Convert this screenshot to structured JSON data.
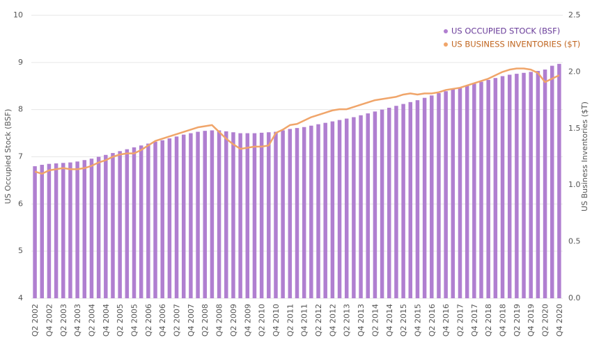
{
  "chart_data": {
    "type": "bar_line",
    "y_label": "US Occupied Stock (BSF)",
    "y2_label": "US Business Inventories ($T)",
    "legend": "upper right",
    "grid": true,
    "categories": [
      "Q2 2002",
      null,
      "Q4 2002",
      null,
      "Q2 2003",
      null,
      "Q4 2003",
      null,
      "Q2 2004",
      null,
      "Q4 2004",
      null,
      "Q2 2005",
      null,
      "Q4 2005",
      null,
      "Q2 2006",
      null,
      "Q4 2006",
      null,
      "Q2 2007",
      null,
      "Q4 2007",
      null,
      "Q2 2008",
      null,
      "Q4 2008",
      null,
      "Q2 2009",
      null,
      "Q4 2009",
      null,
      "Q2 2010",
      null,
      "Q4 2010",
      null,
      "Q2 2011",
      null,
      "Q4 2011",
      null,
      "Q2 2012",
      null,
      "Q4 2012",
      null,
      "Q2 2013",
      null,
      "Q4 2013",
      null,
      "Q2 2014",
      null,
      "Q4 2014",
      null,
      "Q2 2015",
      null,
      "Q4 2015",
      null,
      "Q2 2016",
      null,
      "Q4 2016",
      null,
      "Q2 2017",
      null,
      "Q4 2017",
      null,
      "Q2 2018",
      null,
      "Q4 2018",
      null,
      "Q2 2019",
      null,
      "Q4 2019",
      null,
      "Q2 2020",
      null,
      "Q4 2020"
    ],
    "series": [
      {
        "name": "US OCCUPIED STOCK (BSF)",
        "type": "bar",
        "color": "#b07fd0",
        "values": [
          6.8,
          6.83,
          6.85,
          6.86,
          6.87,
          6.88,
          6.9,
          6.93,
          6.96,
          7.0,
          7.04,
          7.08,
          7.12,
          7.16,
          7.2,
          7.24,
          7.28,
          7.32,
          7.35,
          7.39,
          7.43,
          7.47,
          7.5,
          7.53,
          7.55,
          7.56,
          7.56,
          7.54,
          7.52,
          7.5,
          7.5,
          7.5,
          7.51,
          7.52,
          7.53,
          7.56,
          7.59,
          7.61,
          7.63,
          7.66,
          7.69,
          7.72,
          7.75,
          7.78,
          7.81,
          7.84,
          7.88,
          7.92,
          7.96,
          8.0,
          8.04,
          8.08,
          8.12,
          8.16,
          8.2,
          8.25,
          8.3,
          8.35,
          8.39,
          8.43,
          8.47,
          8.51,
          8.55,
          8.59,
          8.63,
          8.67,
          8.71,
          8.74,
          8.76,
          8.78,
          8.8,
          8.82,
          8.85,
          8.93,
          8.97
        ]
      },
      {
        "name": "US BUSINESS INVENTORIES ($T)",
        "type": "line",
        "axis": "y2",
        "color": "#f0a56a",
        "values": [
          1.12,
          1.1,
          1.13,
          1.14,
          1.15,
          1.14,
          1.14,
          1.15,
          1.17,
          1.2,
          1.22,
          1.25,
          1.27,
          1.28,
          1.28,
          1.31,
          1.35,
          1.39,
          1.41,
          1.43,
          1.45,
          1.47,
          1.49,
          1.51,
          1.52,
          1.53,
          1.47,
          1.41,
          1.36,
          1.32,
          1.33,
          1.34,
          1.34,
          1.35,
          1.46,
          1.49,
          1.53,
          1.54,
          1.57,
          1.6,
          1.62,
          1.64,
          1.66,
          1.67,
          1.67,
          1.69,
          1.71,
          1.73,
          1.75,
          1.76,
          1.77,
          1.78,
          1.8,
          1.81,
          1.8,
          1.81,
          1.81,
          1.82,
          1.84,
          1.85,
          1.86,
          1.88,
          1.9,
          1.92,
          1.94,
          1.97,
          2.0,
          2.02,
          2.03,
          2.03,
          2.02,
          1.99,
          1.91,
          1.94,
          1.97
        ]
      }
    ],
    "ylim": [
      4,
      10
    ],
    "yticks": [
      4,
      5,
      6,
      7,
      8,
      9,
      10
    ],
    "y2lim": [
      0,
      2.5
    ],
    "y2ticks": [
      {
        "value": 0,
        "label": "0.0"
      },
      0.5,
      {
        "value": 1,
        "label": "1.0"
      },
      1.5,
      {
        "value": 2,
        "label": "2.0"
      },
      2.5
    ]
  }
}
